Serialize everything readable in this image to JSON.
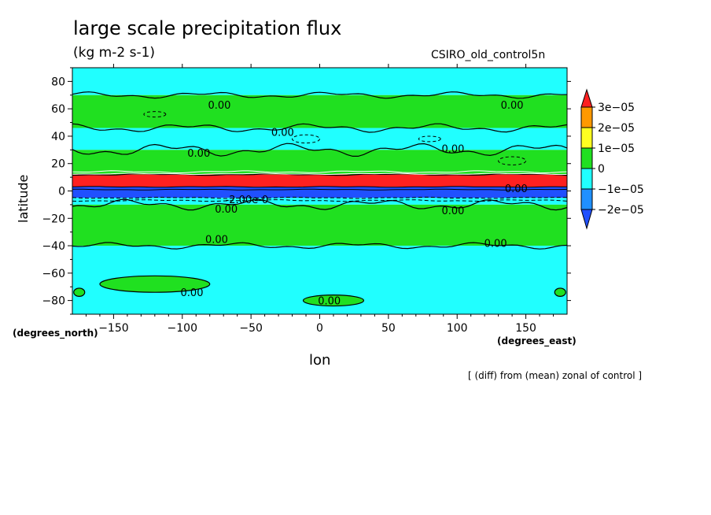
{
  "chart_data": {
    "type": "heatmap",
    "title": "large scale precipitation flux",
    "units": "(kg m-2 s-1)",
    "model_label": "CSIRO_old_control5n",
    "xlabel": "lon",
    "ylabel": "latitude",
    "xlabel_units": "(degrees_east)",
    "ylabel_units": "(degrees_north)",
    "note": "[ (diff) from (mean) zonal of control ]",
    "xlim": [
      -180,
      180
    ],
    "ylim": [
      -90,
      90
    ],
    "x_ticks": [
      -150,
      -100,
      -50,
      0,
      50,
      100,
      150
    ],
    "y_ticks": [
      80,
      60,
      40,
      20,
      0,
      -20,
      -40,
      -60,
      -80
    ],
    "legend": {
      "labels": [
        "3e-05",
        "2e-05",
        "1e-05",
        "0",
        "-1e-05",
        "-2e-05"
      ],
      "colors": [
        "#ff2020",
        "#ff9900",
        "#ffff20",
        "#20e020",
        "#20ffff",
        "#2090ff",
        "#2050ff"
      ]
    },
    "zonal_bands": [
      {
        "lat_from": 70,
        "lat_to": 90,
        "level": "-1e-05 to 0",
        "color": "#20ffff"
      },
      {
        "lat_from": 46,
        "lat_to": 70,
        "level": "0 to 1e-05",
        "color": "#20e020"
      },
      {
        "lat_from": 30,
        "lat_to": 46,
        "level": "-1e-05 to 0",
        "color": "#20ffff"
      },
      {
        "lat_from": 12,
        "lat_to": 30,
        "level": "0 to 1e-05",
        "color": "#20e020"
      },
      {
        "lat_from": 3,
        "lat_to": 12,
        "level": ">3e-05",
        "color": "#ff2020"
      },
      {
        "lat_from": -5,
        "lat_to": 3,
        "level": "<-2e-05",
        "color": "#2050ff"
      },
      {
        "lat_from": -10,
        "lat_to": -5,
        "level": "-1e-05 to 0",
        "color": "#20ffff"
      },
      {
        "lat_from": -40,
        "lat_to": -10,
        "level": "0 to 1e-05",
        "color": "#20e020"
      },
      {
        "lat_from": -90,
        "lat_to": -40,
        "level": "-1e-05 to 0",
        "color": "#20ffff"
      }
    ],
    "contour_labels": [
      {
        "text": "0.00",
        "lon": -73,
        "lat": 63
      },
      {
        "text": "0.00",
        "lon": 140,
        "lat": 63
      },
      {
        "text": "0.00",
        "lon": -27,
        "lat": 43
      },
      {
        "text": "0.00",
        "lon": -88,
        "lat": 28
      },
      {
        "text": "0.00",
        "lon": 97,
        "lat": 31
      },
      {
        "text": "0.00",
        "lon": 143,
        "lat": 2
      },
      {
        "text": "0.00",
        "lon": -68,
        "lat": -13
      },
      {
        "text": "0.00",
        "lon": 97,
        "lat": -14
      },
      {
        "text": "0.00",
        "lon": -75,
        "lat": -35
      },
      {
        "text": "0.00",
        "lon": 128,
        "lat": -38
      },
      {
        "text": "0.00",
        "lon": -93,
        "lat": -74
      },
      {
        "text": "0.00",
        "lon": 7,
        "lat": -80
      },
      {
        "text": "-2.00e-0",
        "lon": -53,
        "lat": -6
      }
    ]
  }
}
